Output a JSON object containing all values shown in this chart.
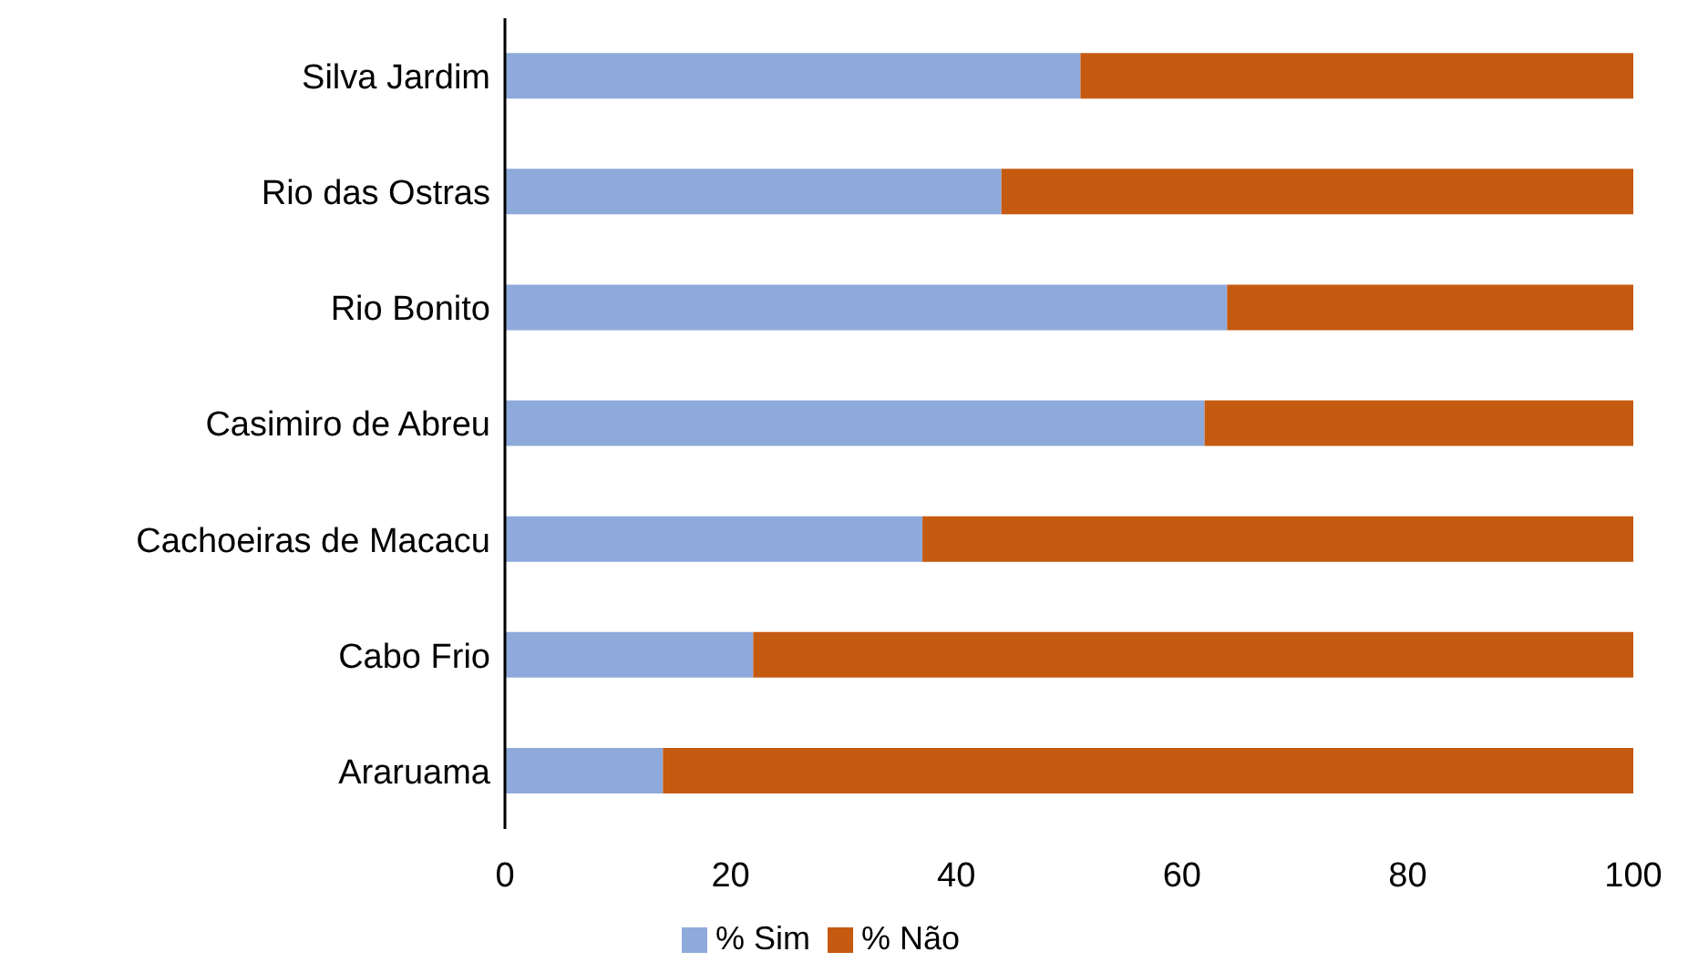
{
  "chart_data": {
    "type": "bar",
    "orientation": "horizontal",
    "stacked": true,
    "categories": [
      "Silva Jardim",
      "Rio das Ostras",
      "Rio Bonito",
      "Casimiro de Abreu",
      "Cachoeiras de Macacu",
      "Cabo Frio",
      "Araruama"
    ],
    "series": [
      {
        "name": "% Sim",
        "color": "#8eaadb",
        "values": [
          51,
          44,
          64,
          62,
          37,
          22,
          14
        ]
      },
      {
        "name": "% Não",
        "color": "#c55a11",
        "values": [
          49,
          56,
          36,
          38,
          63,
          78,
          86
        ]
      }
    ],
    "xlim": [
      0,
      100
    ],
    "xticks": [
      0,
      20,
      40,
      60,
      80,
      100
    ],
    "grid": false,
    "legend": "bottom"
  }
}
